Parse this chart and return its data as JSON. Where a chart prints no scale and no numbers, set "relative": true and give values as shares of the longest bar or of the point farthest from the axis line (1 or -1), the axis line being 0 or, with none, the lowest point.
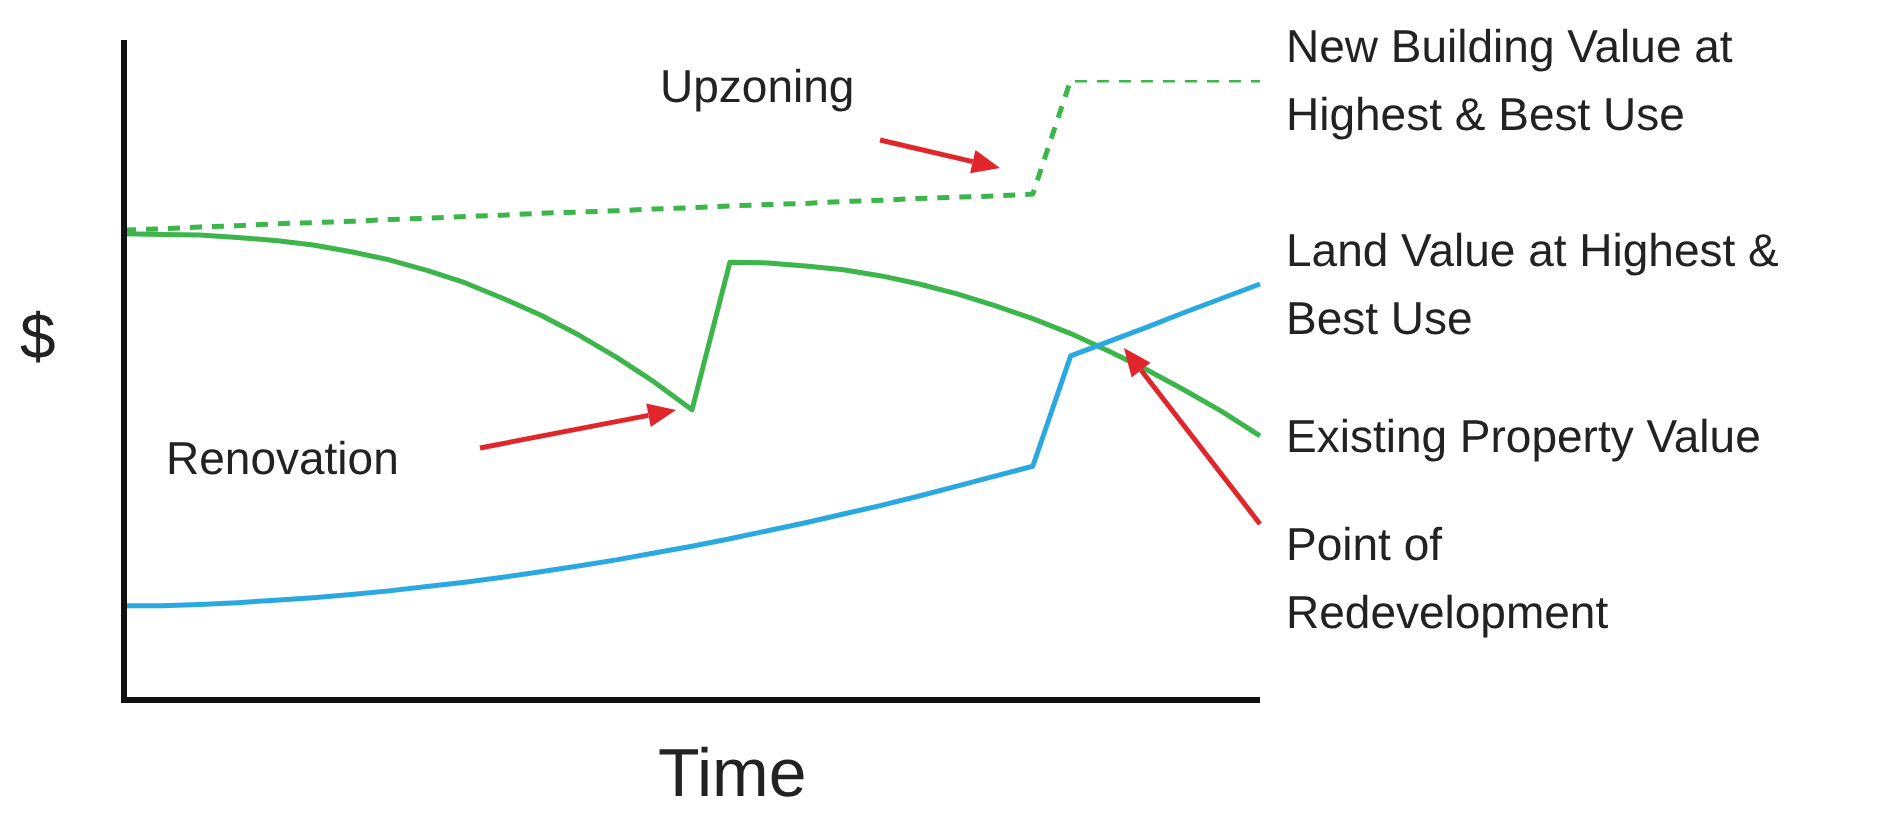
{
  "chart_data": {
    "type": "line",
    "relative": true,
    "xlabel": "Time",
    "ylabel": "$",
    "legend": false,
    "marker": "none",
    "categories": [
      null,
      null,
      null,
      null,
      null,
      null,
      null,
      null,
      null,
      null,
      null,
      null,
      null,
      null,
      null,
      null,
      null,
      null,
      null,
      null,
      null,
      null,
      null,
      null,
      null,
      null,
      null,
      null,
      null,
      null,
      null
    ],
    "series": [
      {
        "name": "New Building Value at Highest & Best Use",
        "color": "#3cb54a",
        "line_style": "dashed",
        "values": [
          0.758,
          0.76,
          0.763,
          0.765,
          0.768,
          0.77,
          0.772,
          0.775,
          0.777,
          0.78,
          0.782,
          0.785,
          0.787,
          0.789,
          0.792,
          0.794,
          0.797,
          0.799,
          0.801,
          0.804,
          0.806,
          0.809,
          0.811,
          0.813,
          0.816,
          1,
          1,
          1,
          1,
          1,
          1
        ]
      },
      {
        "name": "Land Value at Highest & Best Use",
        "color": "#29a9e0",
        "line_style": "solid",
        "values": [
          0.152,
          0.152,
          0.154,
          0.157,
          0.161,
          0.165,
          0.17,
          0.176,
          0.183,
          0.19,
          0.198,
          0.207,
          0.216,
          0.226,
          0.237,
          0.248,
          0.26,
          0.273,
          0.286,
          0.3,
          0.314,
          0.329,
          0.345,
          0.361,
          0.377,
          0.555,
          0.578,
          0.601,
          0.625,
          0.648,
          0.671
        ]
      },
      {
        "name": "Existing Property Value",
        "color": "#3cb54a",
        "line_style": "solid",
        "values": [
          0.752,
          0.751,
          0.75,
          0.746,
          0.741,
          0.734,
          0.723,
          0.71,
          0.693,
          0.673,
          0.648,
          0.621,
          0.589,
          0.553,
          0.513,
          0.468,
          0.706,
          0.705,
          0.7,
          0.694,
          0.684,
          0.671,
          0.655,
          0.636,
          0.615,
          0.591,
          0.563,
          0.533,
          0.5,
          0.465,
          0.426
        ]
      }
    ],
    "annotations": [
      "Upzoning",
      "Renovation",
      "Point of Redevelopment"
    ]
  }
}
